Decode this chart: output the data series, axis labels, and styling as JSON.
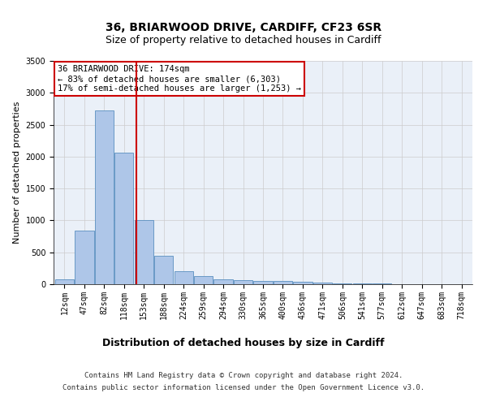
{
  "title_line1": "36, BRIARWOOD DRIVE, CARDIFF, CF23 6SR",
  "title_line2": "Size of property relative to detached houses in Cardiff",
  "xlabel": "Distribution of detached houses by size in Cardiff",
  "ylabel": "Number of detached properties",
  "footer_line1": "Contains HM Land Registry data © Crown copyright and database right 2024.",
  "footer_line2": "Contains public sector information licensed under the Open Government Licence v3.0.",
  "annotation_line1": "36 BRIARWOOD DRIVE: 174sqm",
  "annotation_line2": "← 83% of detached houses are smaller (6,303)",
  "annotation_line3": "17% of semi-detached houses are larger (1,253) →",
  "bar_labels": [
    "12sqm",
    "47sqm",
    "82sqm",
    "118sqm",
    "153sqm",
    "188sqm",
    "224sqm",
    "259sqm",
    "294sqm",
    "330sqm",
    "365sqm",
    "400sqm",
    "436sqm",
    "471sqm",
    "506sqm",
    "541sqm",
    "577sqm",
    "612sqm",
    "647sqm",
    "683sqm",
    "718sqm"
  ],
  "bar_values": [
    75,
    840,
    2720,
    2060,
    1000,
    440,
    200,
    130,
    80,
    60,
    50,
    45,
    35,
    25,
    15,
    10,
    8,
    5,
    3,
    2,
    1
  ],
  "bar_color": "#aec6e8",
  "bar_edge_color": "#5a8fc0",
  "property_line_x": 3.62,
  "property_line_color": "#cc0000",
  "background_color": "#eaf0f8",
  "ylim": [
    0,
    3500
  ],
  "yticks": [
    0,
    500,
    1000,
    1500,
    2000,
    2500,
    3000,
    3500
  ],
  "annotation_box_color": "#ffffff",
  "annotation_box_edge": "#cc0000",
  "grid_color": "#cccccc",
  "title1_fontsize": 10,
  "title2_fontsize": 9,
  "xlabel_fontsize": 9,
  "ylabel_fontsize": 8,
  "tick_fontsize": 7,
  "footer_fontsize": 6.5,
  "annot_fontsize": 7.5
}
